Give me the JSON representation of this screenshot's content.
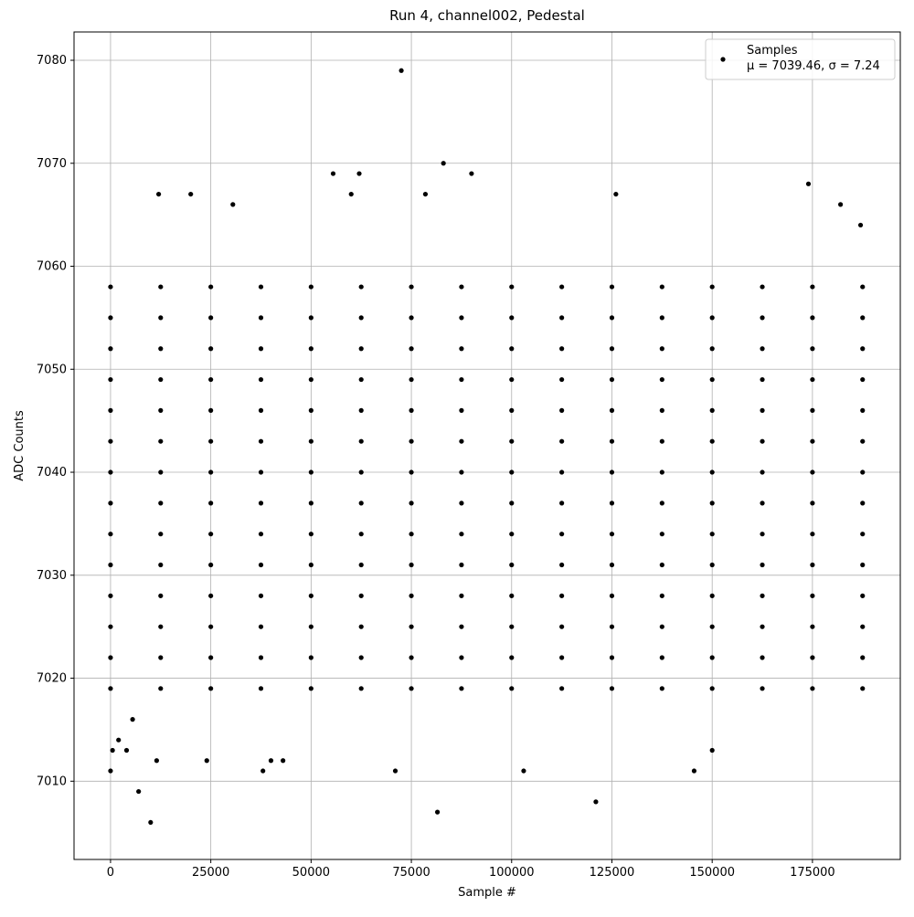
{
  "chart_data": {
    "type": "scatter",
    "title": "Run 4, channel002, Pedestal",
    "x_label": "Sample #",
    "y_label": "ADC Counts",
    "xlim": [
      -9100,
      196900
    ],
    "ylim": [
      7002.4,
      7082.75
    ],
    "xticks": [
      0,
      25000,
      50000,
      75000,
      100000,
      125000,
      150000,
      175000
    ],
    "yticks": [
      7010,
      7020,
      7030,
      7040,
      7050,
      7060,
      7070,
      7080
    ],
    "grid": true,
    "legend_position": "upper right",
    "legend_note": "μ = 7039.46, σ = 7.24",
    "series": [
      {
        "name": "Samples",
        "color": "#000000",
        "x": [
          0,
          0,
          0,
          0,
          0,
          0,
          0,
          0,
          0,
          0,
          0,
          0,
          0,
          0,
          12500,
          12500,
          12500,
          12500,
          12500,
          12500,
          12500,
          12500,
          12500,
          12500,
          12500,
          12500,
          12500,
          12500,
          25000,
          25000,
          25000,
          25000,
          25000,
          25000,
          25000,
          25000,
          25000,
          25000,
          25000,
          25000,
          25000,
          25000,
          37500,
          37500,
          37500,
          37500,
          37500,
          37500,
          37500,
          37500,
          37500,
          37500,
          37500,
          37500,
          37500,
          37500,
          50000,
          50000,
          50000,
          50000,
          50000,
          50000,
          50000,
          50000,
          50000,
          50000,
          50000,
          50000,
          50000,
          50000,
          62500,
          62500,
          62500,
          62500,
          62500,
          62500,
          62500,
          62500,
          62500,
          62500,
          62500,
          62500,
          62500,
          62500,
          75000,
          75000,
          75000,
          75000,
          75000,
          75000,
          75000,
          75000,
          75000,
          75000,
          75000,
          75000,
          75000,
          75000,
          87500,
          87500,
          87500,
          87500,
          87500,
          87500,
          87500,
          87500,
          87500,
          87500,
          87500,
          87500,
          87500,
          87500,
          100000,
          100000,
          100000,
          100000,
          100000,
          100000,
          100000,
          100000,
          100000,
          100000,
          100000,
          100000,
          100000,
          100000,
          112500,
          112500,
          112500,
          112500,
          112500,
          112500,
          112500,
          112500,
          112500,
          112500,
          112500,
          112500,
          112500,
          112500,
          125000,
          125000,
          125000,
          125000,
          125000,
          125000,
          125000,
          125000,
          125000,
          125000,
          125000,
          125000,
          125000,
          125000,
          137500,
          137500,
          137500,
          137500,
          137500,
          137500,
          137500,
          137500,
          137500,
          137500,
          137500,
          137500,
          137500,
          137500,
          150000,
          150000,
          150000,
          150000,
          150000,
          150000,
          150000,
          150000,
          150000,
          150000,
          150000,
          150000,
          150000,
          150000,
          162500,
          162500,
          162500,
          162500,
          162500,
          162500,
          162500,
          162500,
          162500,
          162500,
          162500,
          162500,
          162500,
          162500,
          175000,
          175000,
          175000,
          175000,
          175000,
          175000,
          175000,
          175000,
          175000,
          175000,
          175000,
          175000,
          175000,
          175000,
          187500,
          187500,
          187500,
          187500,
          187500,
          187500,
          187500,
          187500,
          187500,
          187500,
          187500,
          187500,
          187500,
          187500,
          0,
          500,
          2000,
          4000,
          5500,
          7000,
          10000,
          11500,
          12000,
          20000,
          24000,
          30500,
          38000,
          40000,
          43000,
          55500,
          60000,
          62000,
          71000,
          72500,
          78500,
          81500,
          83000,
          90000,
          103000,
          121000,
          126000,
          145500,
          150000,
          174000,
          182000,
          187000
        ],
        "values": [
          7019,
          7022,
          7025,
          7028,
          7031,
          7034,
          7037,
          7040,
          7043,
          7046,
          7049,
          7052,
          7055,
          7058,
          7019,
          7022,
          7025,
          7028,
          7031,
          7034,
          7037,
          7040,
          7043,
          7046,
          7049,
          7052,
          7055,
          7058,
          7019,
          7022,
          7025,
          7028,
          7031,
          7034,
          7037,
          7040,
          7043,
          7046,
          7049,
          7052,
          7055,
          7058,
          7019,
          7022,
          7025,
          7028,
          7031,
          7034,
          7037,
          7040,
          7043,
          7046,
          7049,
          7052,
          7055,
          7058,
          7019,
          7022,
          7025,
          7028,
          7031,
          7034,
          7037,
          7040,
          7043,
          7046,
          7049,
          7052,
          7055,
          7058,
          7019,
          7022,
          7025,
          7028,
          7031,
          7034,
          7037,
          7040,
          7043,
          7046,
          7049,
          7052,
          7055,
          7058,
          7019,
          7022,
          7025,
          7028,
          7031,
          7034,
          7037,
          7040,
          7043,
          7046,
          7049,
          7052,
          7055,
          7058,
          7019,
          7022,
          7025,
          7028,
          7031,
          7034,
          7037,
          7040,
          7043,
          7046,
          7049,
          7052,
          7055,
          7058,
          7019,
          7022,
          7025,
          7028,
          7031,
          7034,
          7037,
          7040,
          7043,
          7046,
          7049,
          7052,
          7055,
          7058,
          7019,
          7022,
          7025,
          7028,
          7031,
          7034,
          7037,
          7040,
          7043,
          7046,
          7049,
          7052,
          7055,
          7058,
          7019,
          7022,
          7025,
          7028,
          7031,
          7034,
          7037,
          7040,
          7043,
          7046,
          7049,
          7052,
          7055,
          7058,
          7019,
          7022,
          7025,
          7028,
          7031,
          7034,
          7037,
          7040,
          7043,
          7046,
          7049,
          7052,
          7055,
          7058,
          7019,
          7022,
          7025,
          7028,
          7031,
          7034,
          7037,
          7040,
          7043,
          7046,
          7049,
          7052,
          7055,
          7058,
          7019,
          7022,
          7025,
          7028,
          7031,
          7034,
          7037,
          7040,
          7043,
          7046,
          7049,
          7052,
          7055,
          7058,
          7019,
          7022,
          7025,
          7028,
          7031,
          7034,
          7037,
          7040,
          7043,
          7046,
          7049,
          7052,
          7055,
          7058,
          7019,
          7022,
          7025,
          7028,
          7031,
          7034,
          7037,
          7040,
          7043,
          7046,
          7049,
          7052,
          7055,
          7058,
          7011,
          7013,
          7014,
          7013,
          7016,
          7009,
          7006,
          7012,
          7067,
          7067,
          7012,
          7066,
          7011,
          7012,
          7012,
          7069,
          7067,
          7069,
          7011,
          7079,
          7067,
          7007,
          7070,
          7069,
          7011,
          7008,
          7067,
          7011,
          7013,
          7068,
          7066,
          7064
        ]
      }
    ]
  }
}
